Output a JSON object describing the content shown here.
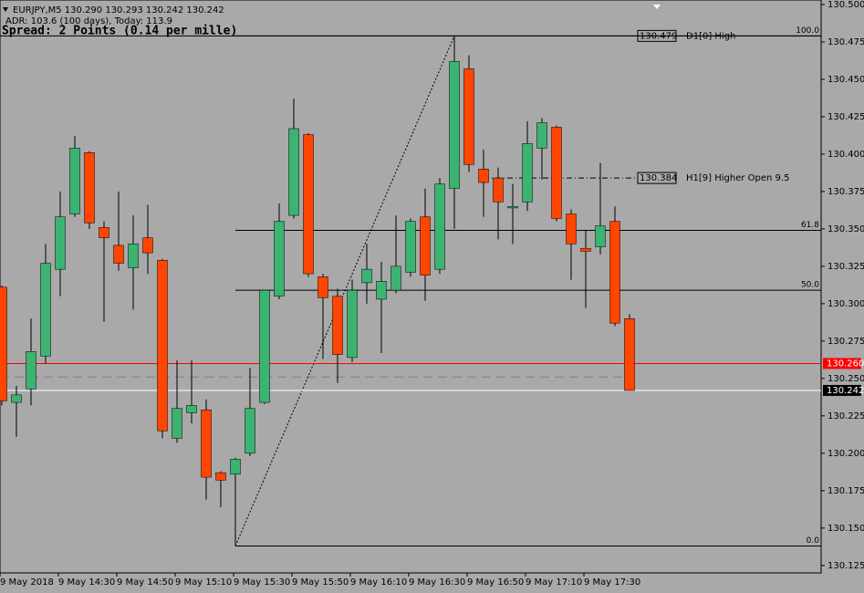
{
  "chart_data": {
    "type": "candlestick",
    "header": "EURJPY,M5  130.290 130.293 130.242 130.242",
    "subheader": "ADR: 103.6 (100 days), Today: 113.9",
    "spread": "Spread: 2 Points (0.14 per mille)",
    "categories": [
      "9 May 2018",
      null,
      null,
      null,
      "9 May 14:30",
      null,
      null,
      null,
      "9 May 14:50",
      null,
      null,
      null,
      "9 May 15:10",
      null,
      null,
      null,
      "9 May 15:30",
      null,
      null,
      null,
      "9 May 15:50",
      null,
      null,
      null,
      "9 May 16:10",
      null,
      null,
      null,
      "9 May 16:30",
      null,
      null,
      null,
      "9 May 16:50",
      null,
      null,
      null,
      "9 May 17:10",
      null,
      null,
      null,
      "9 May 17:30",
      null,
      null,
      null
    ],
    "open": [
      130.311,
      130.234,
      130.243,
      130.265,
      130.323,
      130.36,
      130.401,
      130.351,
      130.339,
      130.324,
      130.344,
      130.329,
      130.21,
      130.227,
      130.229,
      130.187,
      130.186,
      130.2,
      130.234,
      130.305,
      130.359,
      130.413,
      130.318,
      130.305,
      130.264,
      130.314,
      130.303,
      130.309,
      130.321,
      130.358,
      130.323,
      130.377,
      130.457,
      130.39,
      130.384,
      130.364,
      130.368,
      130.404,
      130.418,
      130.36,
      130.337,
      130.338,
      130.355,
      130.29
    ],
    "high": [
      130.312,
      130.245,
      130.29,
      130.34,
      130.375,
      130.412,
      130.402,
      130.355,
      130.375,
      130.359,
      130.366,
      130.33,
      130.262,
      130.262,
      130.236,
      130.188,
      130.197,
      130.257,
      130.309,
      130.367,
      130.437,
      130.414,
      130.32,
      130.31,
      130.316,
      130.34,
      130.328,
      130.359,
      130.357,
      130.377,
      130.384,
      130.479,
      130.466,
      130.403,
      130.391,
      130.38,
      130.422,
      130.424,
      130.419,
      130.363,
      130.349,
      130.394,
      130.365,
      130.293
    ],
    "low": [
      130.232,
      130.211,
      130.232,
      130.26,
      130.305,
      130.358,
      130.35,
      130.288,
      130.322,
      130.296,
      130.32,
      130.21,
      130.207,
      130.22,
      130.169,
      130.164,
      130.138,
      130.198,
      130.233,
      130.303,
      130.357,
      130.318,
      130.263,
      130.247,
      130.261,
      130.3,
      130.267,
      130.307,
      130.318,
      130.302,
      130.32,
      130.35,
      130.388,
      130.358,
      130.343,
      130.34,
      130.362,
      130.383,
      130.355,
      130.316,
      130.297,
      130.333,
      130.285,
      130.242
    ],
    "close": [
      130.235,
      130.239,
      130.268,
      130.327,
      130.358,
      130.404,
      130.354,
      130.344,
      130.327,
      130.34,
      130.334,
      130.215,
      130.23,
      130.232,
      130.184,
      130.182,
      130.196,
      130.23,
      130.309,
      130.355,
      130.417,
      130.32,
      130.304,
      130.266,
      130.309,
      130.323,
      130.315,
      130.325,
      130.355,
      130.319,
      130.38,
      130.462,
      130.393,
      130.381,
      130.368,
      130.365,
      130.407,
      130.421,
      130.357,
      130.34,
      130.335,
      130.352,
      130.287,
      130.242
    ],
    "up_color": "#3cb371",
    "down_color": "#ff4500",
    "ylim": [
      130.12,
      130.503
    ],
    "yticks": [
      {
        "value": 130.5,
        "label": "130.500"
      },
      130.475,
      {
        "value": 130.45,
        "label": "130.450"
      },
      130.425,
      {
        "value": 130.4,
        "label": "130.400"
      },
      130.375,
      {
        "value": 130.35,
        "label": "130.350"
      },
      130.325,
      {
        "value": 130.3,
        "label": "130.300"
      },
      130.275,
      {
        "value": 130.25,
        "label": "130.250"
      },
      130.225,
      {
        "value": 130.2,
        "label": "130.200"
      },
      130.175,
      {
        "value": 130.15,
        "label": "130.150"
      },
      130.125
    ],
    "levels": [
      {
        "name": "D1[0] High",
        "value": 130.479,
        "value_label": "130.479"
      },
      {
        "name": "H1[9] Higher Open 9.5",
        "value": 130.384,
        "value_label": "130.384"
      }
    ],
    "fibonacci": [
      {
        "label": "100.0",
        "price": 130.479
      },
      {
        "label": "61.8",
        "price": 130.349
      },
      {
        "label": "50.0",
        "price": 130.309
      },
      {
        "label": "0.0",
        "price": 130.138
      }
    ],
    "dashed_line": 130.251,
    "price_lines": [
      {
        "value": 130.26,
        "label": "130.260",
        "color": "#ff0000"
      },
      {
        "value": 130.242,
        "label": "130.242",
        "color": "#ffffff"
      }
    ]
  }
}
